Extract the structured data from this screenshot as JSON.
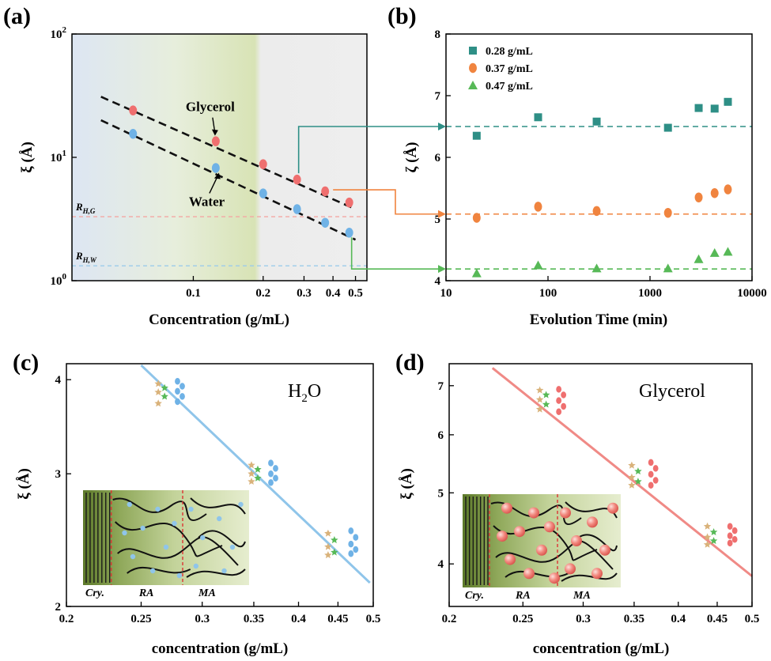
{
  "panels": {
    "a": "(a)",
    "b": "(b)",
    "c": "(c)",
    "d": "(d)"
  },
  "colors": {
    "glycerol": "#ef6f6f",
    "water": "#6fb2e6",
    "s028": "#2e8f86",
    "s037": "#f0843f",
    "s047": "#57b957",
    "fit_water": "#8fc5ea",
    "fit_glycerol": "#f08a86"
  },
  "chart_data": [
    {
      "id": "a",
      "type": "scatter",
      "title": "",
      "xlabel": "Concentration (g/mL)",
      "ylabel": "ξ (Å)",
      "xscale": "log",
      "yscale": "log",
      "xlim": [
        0.03,
        0.56
      ],
      "ylim": [
        1,
        100
      ],
      "xticks": [
        {
          "value": 0.1,
          "label": "0.1"
        },
        {
          "value": 0.2,
          "label": "0.2"
        },
        {
          "value": 0.3,
          "label": "0.3"
        },
        {
          "value": 0.4,
          "label": "0.4"
        },
        {
          "value": 0.5,
          "label": "0.5"
        }
      ],
      "yticks": [
        {
          "value": 1,
          "label": "10",
          "sup": "0"
        },
        {
          "value": 10,
          "label": "10",
          "sup": "1"
        },
        {
          "value": 100,
          "label": "10",
          "sup": "2"
        }
      ],
      "series": [
        {
          "name": "Glycerol",
          "color": "#ef6f6f",
          "x": [
            0.055,
            0.125,
            0.2,
            0.28,
            0.37,
            0.47
          ],
          "y": [
            24,
            13.5,
            8.8,
            6.6,
            5.3,
            4.3
          ]
        },
        {
          "name": "Water",
          "color": "#6fb2e6",
          "x": [
            0.055,
            0.125,
            0.2,
            0.28,
            0.37,
            0.47
          ],
          "y": [
            15.5,
            8.2,
            5.1,
            3.8,
            2.95,
            2.45
          ]
        }
      ],
      "fits": [
        {
          "x": [
            0.04,
            0.5
          ],
          "y": [
            31,
            3.8
          ]
        },
        {
          "x": [
            0.04,
            0.5
          ],
          "y": [
            20,
            2.15
          ]
        }
      ],
      "reference_lines": [
        {
          "label": "R",
          "sub": "H,G",
          "y": 3.3,
          "color": "#f4a7a3"
        },
        {
          "label": "R",
          "sub": "H,W",
          "y": 1.32,
          "color": "#9ccbea"
        }
      ],
      "annotations": [
        {
          "text": "Glycerol",
          "x": 0.125,
          "y": 13.5
        },
        {
          "text": "Water",
          "x": 0.125,
          "y": 8.2
        }
      ]
    },
    {
      "id": "b",
      "type": "scatter",
      "title": "",
      "xlabel": "Evolution Time (min)",
      "ylabel": "ζ (Å)",
      "xscale": "log",
      "xlim": [
        10,
        10000
      ],
      "ylim": [
        4,
        8
      ],
      "xticks": [
        {
          "value": 10,
          "label": "10"
        },
        {
          "value": 100,
          "label": "100"
        },
        {
          "value": 1000,
          "label": "1000"
        },
        {
          "value": 10000,
          "label": "10000"
        }
      ],
      "yticks": [
        {
          "value": 4,
          "label": "4"
        },
        {
          "value": 5,
          "label": "5"
        },
        {
          "value": 6,
          "label": "6"
        },
        {
          "value": 7,
          "label": "7"
        },
        {
          "value": 8,
          "label": "8"
        }
      ],
      "legend_position": "top-left",
      "series": [
        {
          "name": "0.28 g/mL",
          "marker": "square",
          "color": "#2e8f86",
          "x": [
            20,
            80,
            300,
            1500,
            3000,
            4300,
            5800
          ],
          "y": [
            6.35,
            6.65,
            6.58,
            6.48,
            6.8,
            6.79,
            6.9
          ],
          "level": 6.5
        },
        {
          "name": "0.37 g/mL",
          "marker": "circle",
          "color": "#f0843f",
          "x": [
            20,
            80,
            300,
            1500,
            3000,
            4300,
            5800
          ],
          "y": [
            5.02,
            5.2,
            5.13,
            5.1,
            5.35,
            5.42,
            5.48
          ],
          "level": 5.08
        },
        {
          "name": "0.47 g/mL",
          "marker": "triangle",
          "color": "#57b957",
          "x": [
            20,
            80,
            300,
            1500,
            3000,
            4300,
            5800
          ],
          "y": [
            4.12,
            4.25,
            4.2,
            4.2,
            4.35,
            4.45,
            4.47
          ],
          "level": 4.19
        }
      ]
    },
    {
      "id": "c",
      "type": "scatter",
      "title": "",
      "inline_title": "H",
      "inline_title_sub": "2",
      "inline_title_tail": "O",
      "xlabel": "concentration (g/mL)",
      "ylabel": "ξ (Å)",
      "xscale": "log",
      "yscale": "log",
      "xlim": [
        0.2,
        0.5
      ],
      "ylim": [
        2,
        4.2
      ],
      "xticks": [
        {
          "value": 0.2,
          "label": "0.2"
        },
        {
          "value": 0.25,
          "label": "0.25"
        },
        {
          "value": 0.3,
          "label": "0.3"
        },
        {
          "value": 0.35,
          "label": "0.35"
        },
        {
          "value": 0.4,
          "label": "0.4"
        },
        {
          "value": 0.45,
          "label": "0.45"
        },
        {
          "value": 0.5,
          "label": "0.5"
        }
      ],
      "yticks": [
        {
          "value": 2,
          "label": "2"
        },
        {
          "value": 3,
          "label": "3"
        },
        {
          "value": 4,
          "label": "4"
        }
      ],
      "fit": {
        "x": [
          0.25,
          0.495
        ],
        "y": [
          4.18,
          2.15
        ],
        "color": "#8fc5ea"
      },
      "clusters": [
        {
          "x": 0.265,
          "ys": [
            3.95,
            3.9,
            3.85,
            3.8,
            3.72
          ],
          "colors": [
            "#d9b27a",
            "#57b957"
          ]
        },
        {
          "x": 0.28,
          "ys": [
            3.98,
            3.92,
            3.86,
            3.8,
            3.74
          ],
          "colors": [
            "#6fb2e6"
          ]
        },
        {
          "x": 0.35,
          "ys": [
            3.08,
            3.04,
            3.0,
            2.96,
            2.93
          ],
          "colors": [
            "#d9b27a",
            "#57b957"
          ]
        },
        {
          "x": 0.37,
          "ys": [
            3.1,
            3.05,
            3.0,
            2.96,
            2.92
          ],
          "colors": [
            "#6fb2e6"
          ]
        },
        {
          "x": 0.44,
          "ys": [
            2.5,
            2.45,
            2.4,
            2.36,
            2.34
          ],
          "colors": [
            "#d9b27a",
            "#57b957"
          ]
        },
        {
          "x": 0.47,
          "ys": [
            2.52,
            2.47,
            2.42,
            2.38,
            2.35
          ],
          "colors": [
            "#6fb2e6"
          ]
        }
      ],
      "inset": {
        "labels": [
          "Cry.",
          "RA",
          "MA"
        ],
        "particle_color": "#8fc5ea"
      }
    },
    {
      "id": "d",
      "type": "scatter",
      "title": "",
      "inline_title": "Glycerol",
      "xlabel": "concentration (g/mL)",
      "ylabel": "ξ (Å)",
      "xscale": "log",
      "yscale": "log",
      "xlim": [
        0.2,
        0.5
      ],
      "ylim": [
        3.5,
        7.5
      ],
      "xticks": [
        {
          "value": 0.2,
          "label": "0.2"
        },
        {
          "value": 0.25,
          "label": "0.25"
        },
        {
          "value": 0.3,
          "label": "0.3"
        },
        {
          "value": 0.35,
          "label": "0.35"
        },
        {
          "value": 0.4,
          "label": "0.4"
        },
        {
          "value": 0.45,
          "label": "0.45"
        },
        {
          "value": 0.5,
          "label": "0.5"
        }
      ],
      "yticks": [
        {
          "value": 4,
          "label": "4"
        },
        {
          "value": 5,
          "label": "5"
        },
        {
          "value": 6,
          "label": "6"
        },
        {
          "value": 7,
          "label": "7"
        }
      ],
      "fit": {
        "x": [
          0.228,
          0.5
        ],
        "y": [
          7.4,
          3.85
        ],
        "color": "#f08a86"
      },
      "clusters": [
        {
          "x": 0.265,
          "ys": [
            6.9,
            6.8,
            6.7,
            6.6,
            6.5
          ],
          "colors": [
            "#d9b27a",
            "#57b957"
          ]
        },
        {
          "x": 0.28,
          "ys": [
            6.92,
            6.8,
            6.68,
            6.56,
            6.45
          ],
          "colors": [
            "#ef6f6f"
          ]
        },
        {
          "x": 0.35,
          "ys": [
            5.45,
            5.35,
            5.25,
            5.18,
            5.12
          ],
          "colors": [
            "#d9b27a",
            "#57b957"
          ]
        },
        {
          "x": 0.37,
          "ys": [
            5.5,
            5.4,
            5.3,
            5.2,
            5.12
          ],
          "colors": [
            "#ef6f6f"
          ]
        },
        {
          "x": 0.44,
          "ys": [
            4.5,
            4.42,
            4.35,
            4.3,
            4.25
          ],
          "colors": [
            "#d9b27a",
            "#57b957"
          ]
        },
        {
          "x": 0.47,
          "ys": [
            4.5,
            4.44,
            4.37,
            4.32,
            4.27
          ],
          "colors": [
            "#ef6f6f"
          ]
        }
      ],
      "inset": {
        "labels": [
          "Cry.",
          "RA",
          "MA"
        ],
        "particle_color": "#ef6f6f"
      }
    }
  ]
}
